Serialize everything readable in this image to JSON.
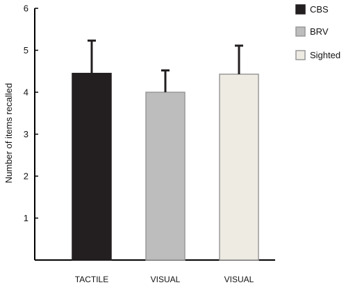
{
  "chart_data": {
    "type": "bar",
    "categories": [
      "TACTILE",
      "VISUAL",
      "VISUAL"
    ],
    "values": [
      4.45,
      4.0,
      4.43
    ],
    "errors": [
      0.78,
      0.52,
      0.68
    ],
    "bar_colors": [
      "#231f20",
      "#bdbdbd",
      "#eeebe3"
    ],
    "bar_strokes": [
      "#231f20",
      "#999999",
      "#999999"
    ],
    "legend": [
      {
        "name": "CBS",
        "color": "#231f20",
        "stroke": "#231f20"
      },
      {
        "name": "BRV",
        "color": "#bdbdbd",
        "stroke": "#999999"
      },
      {
        "name": "Sighted",
        "color": "#eeebe3",
        "stroke": "#999999"
      }
    ],
    "title": "",
    "xlabel": "",
    "ylabel": "Number of items recalled",
    "ylim": [
      0,
      6
    ],
    "yticks": [
      1,
      2,
      3,
      4,
      5,
      6
    ],
    "grid": false,
    "legend_position": "top-right"
  }
}
